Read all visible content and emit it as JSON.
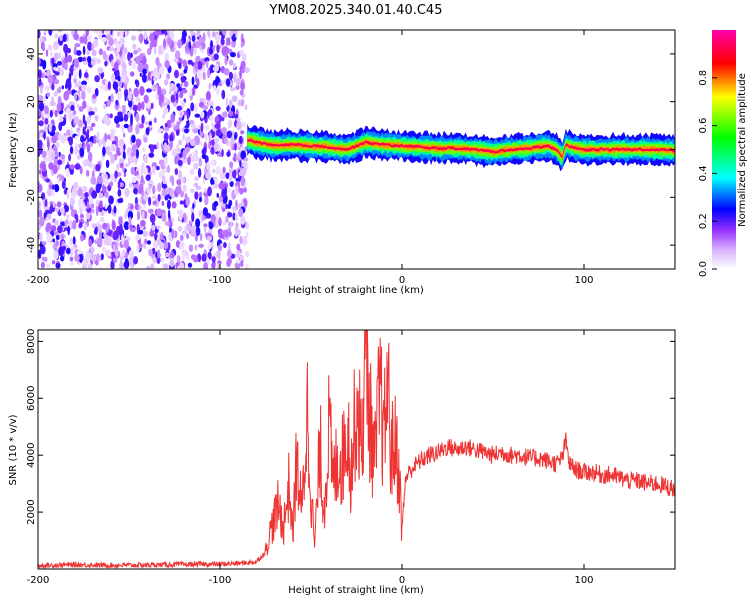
{
  "chart_data": [
    {
      "type": "heatmap",
      "title": "YM08.2025.340.01.40.C45",
      "xlabel": "Height of straight line (km)",
      "ylabel": "Frequency (Hz)",
      "xlim": [
        -200,
        150
      ],
      "ylim": [
        -50,
        50
      ],
      "xticks": [
        -200,
        -100,
        0,
        100
      ],
      "yticks": [
        -40,
        -20,
        0,
        20,
        40
      ],
      "grid": false,
      "colorbar": {
        "label": "Normalized spectral amplitude",
        "range": [
          0,
          1
        ],
        "ticks": [
          0.0,
          0.2,
          0.4,
          0.6,
          0.8
        ],
        "colormap": "rainbow (magenta-blue-cyan-green-yellow-red)",
        "colors": [
          "#ffffff",
          "#cc33ff",
          "#0000ff",
          "#00ffff",
          "#00ff00",
          "#ffff00",
          "#ff0000"
        ]
      },
      "regions": [
        {
          "name": "noise",
          "x_range": [
            -200,
            -85
          ],
          "freq_range": [
            -50,
            50
          ],
          "amplitude_range": [
            0.0,
            0.25
          ]
        },
        {
          "name": "signal",
          "x_range": [
            -85,
            150
          ],
          "freq_range": [
            -5,
            8
          ],
          "amplitude_range": [
            0.2,
            1.0
          ]
        }
      ],
      "ridge_frequency": {
        "x": [
          -85,
          -80,
          -70,
          -60,
          -50,
          -40,
          -30,
          -20,
          -10,
          0,
          10,
          20,
          30,
          40,
          50,
          60,
          70,
          80,
          85,
          88,
          90,
          95,
          100,
          110,
          120,
          130,
          140,
          150
        ],
        "freq": [
          4,
          3,
          1.5,
          2,
          1.5,
          1,
          0,
          3,
          2,
          1.5,
          1,
          0.5,
          0.5,
          0,
          -1,
          0,
          0.5,
          1.5,
          0,
          -3,
          2,
          0.5,
          0,
          0,
          0,
          0,
          0,
          -0.5
        ]
      }
    },
    {
      "type": "line",
      "title": "",
      "xlabel": "Height of straight line (km)",
      "ylabel": "SNR (10 * v/v)",
      "xlim": [
        -200,
        150
      ],
      "ylim": [
        0,
        8400
      ],
      "xticks": [
        -200,
        -100,
        0,
        100
      ],
      "yticks": [
        2000,
        4000,
        6000,
        8000
      ],
      "grid": false,
      "line_color": "#ee3333",
      "series": [
        {
          "x": [
            -200,
            -180,
            -160,
            -140,
            -120,
            -100,
            -90,
            -80,
            -75,
            -72,
            -68,
            -65,
            -62,
            -60,
            -58,
            -55,
            -52,
            -50,
            -48,
            -45,
            -43,
            -40,
            -38,
            -35,
            -33,
            -30,
            -28,
            -25,
            -22,
            -20,
            -18,
            -15,
            -12,
            -10,
            -8,
            -6,
            -4,
            -2,
            0,
            2,
            5,
            10,
            15,
            20,
            25,
            30,
            35,
            40,
            45,
            50,
            55,
            60,
            65,
            70,
            75,
            80,
            85,
            88,
            90,
            92,
            95,
            100,
            105,
            110,
            115,
            120,
            125,
            130,
            135,
            140,
            145,
            150
          ],
          "y": [
            120,
            150,
            130,
            140,
            160,
            170,
            200,
            250,
            600,
            1400,
            2200,
            1500,
            3000,
            1200,
            3800,
            2000,
            5500,
            2800,
            800,
            4300,
            2000,
            5100,
            3000,
            4000,
            3700,
            5200,
            3300,
            6000,
            4200,
            8400,
            5500,
            3700,
            6400,
            4300,
            6800,
            4000,
            4400,
            3800,
            1400,
            3200,
            3500,
            3800,
            4000,
            4100,
            4300,
            4200,
            4300,
            4200,
            4100,
            4000,
            4100,
            4000,
            4000,
            3900,
            3900,
            3800,
            3700,
            3900,
            4500,
            3700,
            3500,
            3400,
            3400,
            3300,
            3300,
            3200,
            3100,
            3100,
            3000,
            3000,
            2900,
            2800
          ]
        }
      ]
    }
  ]
}
